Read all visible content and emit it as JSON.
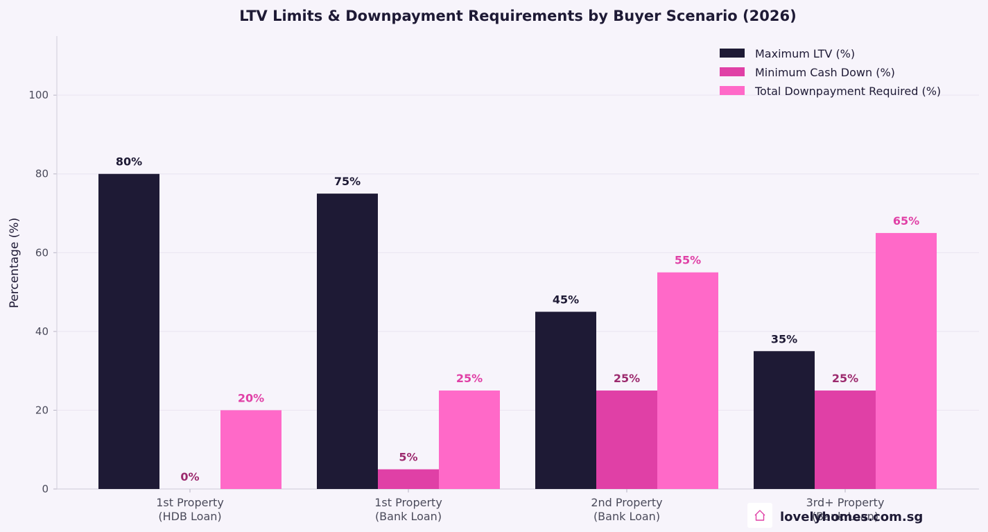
{
  "chart_data": {
    "type": "bar",
    "title": "LTV Limits & Downpayment Requirements by Buyer Scenario (2026)",
    "ylabel": "Percentage (%)",
    "xlabel": "",
    "ylim": [
      0,
      115
    ],
    "yticks": [
      0,
      20,
      40,
      60,
      80,
      100
    ],
    "grid": "horizontal",
    "legend_position": "top-right",
    "categories": [
      [
        "1st Property",
        "(HDB Loan)"
      ],
      [
        "1st Property",
        "(Bank Loan)"
      ],
      [
        "2nd Property",
        "(Bank Loan)"
      ],
      [
        "3rd+ Property",
        "(Bank Loan)"
      ]
    ],
    "series": [
      {
        "name": "Maximum LTV (%)",
        "values": [
          80,
          75,
          45,
          35
        ],
        "labels": [
          "80%",
          "75%",
          "45%",
          "35%"
        ],
        "color": "#1e1a35",
        "label_color": "#1e1a35"
      },
      {
        "name": "Minimum Cash Down (%)",
        "values": [
          0,
          5,
          25,
          25
        ],
        "labels": [
          "0%",
          "5%",
          "25%",
          "25%"
        ],
        "color": "#e040a6",
        "label_color": "#9c2a6e"
      },
      {
        "name": "Total Downpayment Required (%)",
        "values": [
          20,
          25,
          55,
          65
        ],
        "labels": [
          "20%",
          "25%",
          "55%",
          "65%"
        ],
        "color": "#ff69c8",
        "label_color": "#e040a6"
      }
    ]
  },
  "watermark": {
    "text": "lovelyhomes.com.sg",
    "icon": "house-icon",
    "icon_color": "#e040a6"
  }
}
